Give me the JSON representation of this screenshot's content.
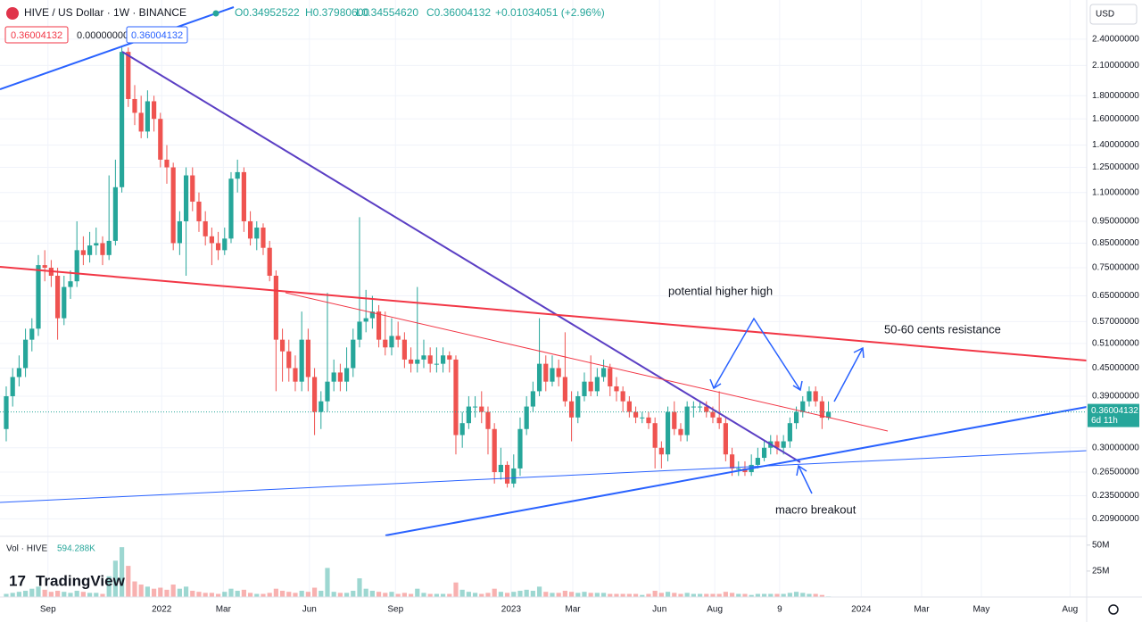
{
  "header": {
    "symbol": "HIVE / US Dollar · 1W · BINANCE",
    "ohlc": [
      "O0.34952522",
      "H0.37980600",
      "L0.34554620",
      "C0.36004132",
      "+0.01034051 (+2.96%)"
    ],
    "boxes": [
      "0.36004132",
      "0.00000000",
      "0.36004132"
    ],
    "currency": "USD",
    "brand": "TradingView"
  },
  "chart_data": {
    "type": "candlestick",
    "log_scale": true,
    "grid": true,
    "up_color": "#26a69a",
    "down_color": "#ef5350",
    "ylim": [
      0.192,
      2.93
    ],
    "yticks": [
      {
        "value": 2.4,
        "label": "2.40000000"
      },
      {
        "value": 2.1,
        "label": "2.10000000"
      },
      {
        "value": 1.8,
        "label": "1.80000000"
      },
      {
        "value": 1.6,
        "label": "1.60000000"
      },
      {
        "value": 1.4,
        "label": "1.40000000"
      },
      {
        "value": 1.25,
        "label": "1.25000000"
      },
      {
        "value": 1.1,
        "label": "1.10000000"
      },
      {
        "value": 0.95,
        "label": "0.95000000"
      },
      {
        "value": 0.85,
        "label": "0.85000000"
      },
      {
        "value": 0.75,
        "label": "0.75000000"
      },
      {
        "value": 0.65,
        "label": "0.65000000"
      },
      {
        "value": 0.57,
        "label": "0.57000000"
      },
      {
        "value": 0.51,
        "label": "0.51000000"
      },
      {
        "value": 0.45,
        "label": "0.45000000"
      },
      {
        "value": 0.39,
        "label": "0.39000000"
      },
      {
        "value": 0.3,
        "label": "0.30000000"
      },
      {
        "value": 0.265,
        "label": "0.26500000"
      },
      {
        "value": 0.235,
        "label": "0.23500000"
      },
      {
        "value": 0.209,
        "label": "0.20900000"
      }
    ],
    "xlim": [
      -0.97,
      168.2
    ],
    "xticks": [
      {
        "value": 6.5,
        "label": "Sep"
      },
      {
        "value": 24.2,
        "label": "2022"
      },
      {
        "value": 33.8,
        "label": "Mar"
      },
      {
        "value": 47.2,
        "label": "Jun"
      },
      {
        "value": 60.6,
        "label": "Sep"
      },
      {
        "value": 78.6,
        "label": "2023"
      },
      {
        "value": 88.2,
        "label": "Mar"
      },
      {
        "value": 101.7,
        "label": "Jun"
      },
      {
        "value": 110.3,
        "label": "Aug"
      },
      {
        "value": 120.4,
        "label": "9"
      },
      {
        "value": 133.1,
        "label": "2024"
      },
      {
        "value": 142.5,
        "label": "Mar"
      },
      {
        "value": 151.8,
        "label": "May"
      },
      {
        "value": 165.6,
        "label": "Aug"
      }
    ],
    "ohlc": [
      [
        0.33,
        0.41,
        0.31,
        0.39
      ],
      [
        0.39,
        0.45,
        0.37,
        0.43
      ],
      [
        0.43,
        0.48,
        0.41,
        0.45
      ],
      [
        0.45,
        0.55,
        0.43,
        0.52
      ],
      [
        0.52,
        0.58,
        0.49,
        0.55
      ],
      [
        0.55,
        0.8,
        0.53,
        0.76
      ],
      [
        0.76,
        0.82,
        0.7,
        0.75
      ],
      [
        0.75,
        0.78,
        0.68,
        0.72
      ],
      [
        0.72,
        0.75,
        0.52,
        0.58
      ],
      [
        0.58,
        0.72,
        0.56,
        0.68
      ],
      [
        0.68,
        0.74,
        0.64,
        0.7
      ],
      [
        0.7,
        0.95,
        0.68,
        0.82
      ],
      [
        0.82,
        0.88,
        0.76,
        0.8
      ],
      [
        0.8,
        0.9,
        0.77,
        0.84
      ],
      [
        0.84,
        0.92,
        0.8,
        0.85
      ],
      [
        0.85,
        0.88,
        0.76,
        0.8
      ],
      [
        0.8,
        1.2,
        0.78,
        0.86
      ],
      [
        0.86,
        1.3,
        0.84,
        1.13
      ],
      [
        1.13,
        2.3,
        1.1,
        2.25
      ],
      [
        2.25,
        2.3,
        1.7,
        1.77
      ],
      [
        1.77,
        1.9,
        1.55,
        1.65
      ],
      [
        1.65,
        1.8,
        1.45,
        1.5
      ],
      [
        1.5,
        1.85,
        1.45,
        1.75
      ],
      [
        1.75,
        1.8,
        1.5,
        1.6
      ],
      [
        1.6,
        1.65,
        1.25,
        1.3
      ],
      [
        1.3,
        1.4,
        1.15,
        1.25
      ],
      [
        1.25,
        1.28,
        0.82,
        0.85
      ],
      [
        0.85,
        1.0,
        0.8,
        0.95
      ],
      [
        0.95,
        1.25,
        0.72,
        1.2
      ],
      [
        1.2,
        1.25,
        1.0,
        1.05
      ],
      [
        1.05,
        1.1,
        0.9,
        0.95
      ],
      [
        0.95,
        1.0,
        0.84,
        0.88
      ],
      [
        0.88,
        0.92,
        0.76,
        0.85
      ],
      [
        0.85,
        0.9,
        0.78,
        0.82
      ],
      [
        0.82,
        0.92,
        0.8,
        0.87
      ],
      [
        0.87,
        1.22,
        0.85,
        1.18
      ],
      [
        1.18,
        1.3,
        1.1,
        1.22
      ],
      [
        1.22,
        1.25,
        0.9,
        0.95
      ],
      [
        0.95,
        1.0,
        0.84,
        0.87
      ],
      [
        0.87,
        0.95,
        0.82,
        0.92
      ],
      [
        0.92,
        0.94,
        0.8,
        0.83
      ],
      [
        0.83,
        0.86,
        0.7,
        0.72
      ],
      [
        0.72,
        0.74,
        0.4,
        0.52
      ],
      [
        0.52,
        0.55,
        0.42,
        0.49
      ],
      [
        0.49,
        0.52,
        0.42,
        0.45
      ],
      [
        0.45,
        0.48,
        0.4,
        0.42
      ],
      [
        0.42,
        0.6,
        0.4,
        0.52
      ],
      [
        0.52,
        0.55,
        0.4,
        0.43
      ],
      [
        0.43,
        0.45,
        0.32,
        0.36
      ],
      [
        0.36,
        0.4,
        0.33,
        0.38
      ],
      [
        0.38,
        0.66,
        0.36,
        0.42
      ],
      [
        0.42,
        0.47,
        0.4,
        0.44
      ],
      [
        0.44,
        0.46,
        0.4,
        0.42
      ],
      [
        0.42,
        0.5,
        0.4,
        0.45
      ],
      [
        0.45,
        0.55,
        0.43,
        0.52
      ],
      [
        0.52,
        0.97,
        0.5,
        0.57
      ],
      [
        0.57,
        0.67,
        0.54,
        0.58
      ],
      [
        0.58,
        0.65,
        0.55,
        0.6
      ],
      [
        0.6,
        0.62,
        0.5,
        0.52
      ],
      [
        0.52,
        0.6,
        0.48,
        0.5
      ],
      [
        0.5,
        0.58,
        0.48,
        0.53
      ],
      [
        0.53,
        0.57,
        0.5,
        0.52
      ],
      [
        0.52,
        0.54,
        0.45,
        0.47
      ],
      [
        0.47,
        0.5,
        0.44,
        0.46
      ],
      [
        0.46,
        0.68,
        0.44,
        0.47
      ],
      [
        0.47,
        0.52,
        0.45,
        0.48
      ],
      [
        0.48,
        0.5,
        0.44,
        0.46
      ],
      [
        0.46,
        0.5,
        0.44,
        0.46
      ],
      [
        0.46,
        0.5,
        0.44,
        0.48
      ],
      [
        0.48,
        0.49,
        0.44,
        0.47
      ],
      [
        0.47,
        0.48,
        0.29,
        0.32
      ],
      [
        0.32,
        0.36,
        0.3,
        0.34
      ],
      [
        0.34,
        0.39,
        0.33,
        0.37
      ],
      [
        0.37,
        0.39,
        0.35,
        0.37
      ],
      [
        0.37,
        0.4,
        0.34,
        0.36
      ],
      [
        0.36,
        0.37,
        0.29,
        0.33
      ],
      [
        0.33,
        0.34,
        0.25,
        0.265
      ],
      [
        0.265,
        0.3,
        0.255,
        0.275
      ],
      [
        0.275,
        0.28,
        0.245,
        0.25
      ],
      [
        0.25,
        0.29,
        0.245,
        0.27
      ],
      [
        0.27,
        0.35,
        0.26,
        0.33
      ],
      [
        0.33,
        0.39,
        0.32,
        0.37
      ],
      [
        0.37,
        0.42,
        0.36,
        0.4
      ],
      [
        0.4,
        0.58,
        0.39,
        0.46
      ],
      [
        0.46,
        0.48,
        0.4,
        0.42
      ],
      [
        0.42,
        0.48,
        0.41,
        0.45
      ],
      [
        0.45,
        0.47,
        0.41,
        0.43
      ],
      [
        0.43,
        0.54,
        0.37,
        0.38
      ],
      [
        0.38,
        0.4,
        0.31,
        0.35
      ],
      [
        0.35,
        0.4,
        0.34,
        0.39
      ],
      [
        0.39,
        0.44,
        0.38,
        0.42
      ],
      [
        0.42,
        0.48,
        0.39,
        0.4
      ],
      [
        0.4,
        0.45,
        0.39,
        0.43
      ],
      [
        0.43,
        0.47,
        0.42,
        0.45
      ],
      [
        0.45,
        0.46,
        0.39,
        0.41
      ],
      [
        0.41,
        0.43,
        0.38,
        0.4
      ],
      [
        0.4,
        0.41,
        0.36,
        0.38
      ],
      [
        0.38,
        0.39,
        0.35,
        0.36
      ],
      [
        0.36,
        0.37,
        0.34,
        0.35
      ],
      [
        0.35,
        0.36,
        0.34,
        0.35
      ],
      [
        0.35,
        0.36,
        0.33,
        0.34
      ],
      [
        0.34,
        0.35,
        0.27,
        0.3
      ],
      [
        0.3,
        0.31,
        0.27,
        0.29
      ],
      [
        0.29,
        0.37,
        0.28,
        0.36
      ],
      [
        0.36,
        0.38,
        0.32,
        0.33
      ],
      [
        0.33,
        0.34,
        0.31,
        0.32
      ],
      [
        0.32,
        0.38,
        0.31,
        0.37
      ],
      [
        0.37,
        0.38,
        0.35,
        0.37
      ],
      [
        0.37,
        0.38,
        0.36,
        0.37
      ],
      [
        0.37,
        0.38,
        0.35,
        0.36
      ],
      [
        0.36,
        0.37,
        0.34,
        0.35
      ],
      [
        0.35,
        0.4,
        0.33,
        0.34
      ],
      [
        0.34,
        0.35,
        0.28,
        0.29
      ],
      [
        0.29,
        0.3,
        0.26,
        0.27
      ],
      [
        0.27,
        0.28,
        0.26,
        0.27
      ],
      [
        0.27,
        0.28,
        0.26,
        0.265
      ],
      [
        0.265,
        0.29,
        0.26,
        0.275
      ],
      [
        0.275,
        0.3,
        0.27,
        0.285
      ],
      [
        0.285,
        0.31,
        0.28,
        0.3
      ],
      [
        0.3,
        0.32,
        0.29,
        0.31
      ],
      [
        0.31,
        0.32,
        0.29,
        0.3
      ],
      [
        0.3,
        0.32,
        0.29,
        0.31
      ],
      [
        0.31,
        0.35,
        0.3,
        0.34
      ],
      [
        0.34,
        0.37,
        0.33,
        0.36
      ],
      [
        0.36,
        0.39,
        0.35,
        0.38
      ],
      [
        0.38,
        0.41,
        0.37,
        0.4
      ],
      [
        0.4,
        0.41,
        0.37,
        0.38
      ],
      [
        0.38,
        0.39,
        0.33,
        0.3495
      ],
      [
        0.34952522,
        0.379806,
        0.3455462,
        0.36004132
      ]
    ],
    "current_price": {
      "label": "0.36004132",
      "countdown": "6d 11h"
    },
    "volume_title": "Vol · HIVE",
    "volume_last_label": "594.288K",
    "volume_ylim": [
      0,
      55
    ],
    "volume_yticks": [
      {
        "value": 50,
        "label": "50M"
      },
      {
        "value": 25,
        "label": "25M"
      }
    ],
    "volume": [
      3,
      4,
      5,
      6,
      8,
      10,
      7,
      5,
      6,
      5,
      4,
      6,
      5,
      4,
      4,
      3,
      20,
      35,
      48,
      30,
      15,
      12,
      10,
      8,
      9,
      7,
      12,
      8,
      10,
      6,
      5,
      4,
      4,
      3,
      5,
      8,
      6,
      7,
      4,
      3,
      3,
      4,
      8,
      6,
      5,
      4,
      6,
      5,
      9,
      6,
      28,
      5,
      4,
      4,
      6,
      18,
      8,
      6,
      5,
      4,
      5,
      3,
      4,
      3,
      8,
      4,
      3,
      3,
      3,
      3,
      14,
      7,
      5,
      4,
      3,
      4,
      8,
      5,
      4,
      5,
      6,
      7,
      6,
      10,
      5,
      4,
      4,
      6,
      5,
      4,
      5,
      4,
      4,
      4,
      3,
      3,
      3,
      3,
      3,
      2,
      3,
      6,
      4,
      5,
      4,
      3,
      4,
      3,
      3,
      3,
      3,
      3,
      5,
      4,
      3,
      3,
      2,
      3,
      3,
      3,
      3,
      3,
      4,
      5,
      4,
      3,
      3,
      2,
      0.594288
    ],
    "annotations": [
      "potential higher high",
      "50-60 cents resistance",
      "macro breakout"
    ]
  }
}
